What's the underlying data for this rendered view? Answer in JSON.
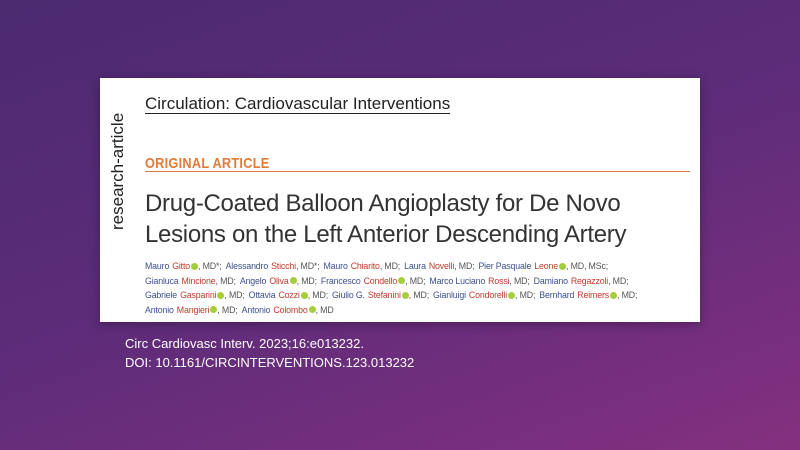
{
  "side_label": "research-article",
  "journal": "Circulation: Cardiovascular Interventions",
  "section": "ORIGINAL ARTICLE",
  "title_lines": [
    "Drug-Coated Balloon Angioplasty for De Novo",
    "Lesions on the Left Anterior Descending Artery"
  ],
  "author_lines": [
    [
      {
        "given": "Mauro",
        "family": "Gitto",
        "orcid": true,
        "suffix": ", MD*;"
      },
      {
        "given": "Alessandro",
        "family": "Sticchi",
        "orcid": false,
        "suffix": ", MD*;"
      },
      {
        "given": "Mauro",
        "family": "Chiarito",
        "orcid": false,
        "suffix": ", MD;"
      },
      {
        "given": "Laura",
        "family": "Novelli",
        "orcid": false,
        "suffix": ", MD;"
      },
      {
        "given": "Pier Pasquale",
        "family": "Leone",
        "orcid": true,
        "suffix": ", MD, MSc;"
      }
    ],
    [
      {
        "given": "Gianluca",
        "family": "Mincione",
        "orcid": false,
        "suffix": ", MD;"
      },
      {
        "given": "Angelo",
        "family": "Oliva",
        "orcid": true,
        "suffix": ", MD;"
      },
      {
        "given": "Francesco",
        "family": "Condello",
        "orcid": true,
        "suffix": ", MD;"
      },
      {
        "given": "Marco Luciano",
        "family": "Rossi",
        "orcid": false,
        "suffix": ", MD;"
      },
      {
        "given": "Damiano",
        "family": "Regazzoli",
        "orcid": false,
        "suffix": ", MD;"
      }
    ],
    [
      {
        "given": "Gabriele",
        "family": "Gasparini",
        "orcid": true,
        "suffix": ", MD;"
      },
      {
        "given": "Ottavia",
        "family": "Cozzi",
        "orcid": true,
        "suffix": ", MD;"
      },
      {
        "given": "Giulio G.",
        "family": "Stefanini",
        "orcid": true,
        "suffix": ", MD;"
      },
      {
        "given": "Gianluigi",
        "family": "Condorelli",
        "orcid": true,
        "suffix": ", MD;"
      },
      {
        "given": "Bernhard",
        "family": "Reimers",
        "orcid": true,
        "suffix": ", MD;"
      }
    ],
    [
      {
        "given": "Antonio",
        "family": "Mangieri",
        "orcid": true,
        "suffix": ", MD;"
      },
      {
        "given": "Antonio",
        "family": "Colombo",
        "orcid": true,
        "suffix": ", MD"
      }
    ]
  ],
  "citation": [
    "Circ Cardiovasc Interv. 2023;16:e013232.",
    "DOI: 10.1161/CIRCINTERVENTIONS.123.013232"
  ]
}
